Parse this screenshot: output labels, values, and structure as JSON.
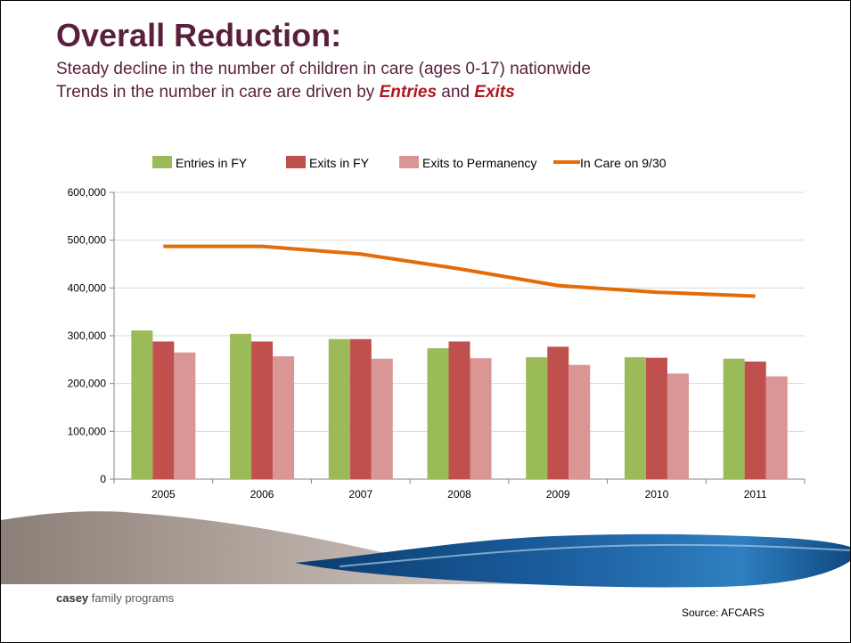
{
  "slide": {
    "title": "Overall Reduction:",
    "subtitle_line1": "Steady decline in the number of children in care (ages 0-17) nationwide",
    "subtitle_line2_prefix": "Trends in the number in care are driven by ",
    "subtitle_line2_entries": "Entries",
    "subtitle_line2_and": " and ",
    "subtitle_line2_exits": "Exits",
    "brand_bold": "casey",
    "brand_rest": " family programs",
    "source": "Source: AFCARS"
  },
  "colors": {
    "title": "#5a1f3d",
    "accent_red": "#b0171f",
    "entries": "#9bbb59",
    "exits": "#c0504d",
    "permanency": "#d99694",
    "in_care": "#e36c09"
  },
  "chart_data": {
    "type": "bar",
    "categories": [
      "2005",
      "2006",
      "2007",
      "2008",
      "2009",
      "2010",
      "2011"
    ],
    "series": [
      {
        "name": "Entries in FY",
        "kind": "bar",
        "color": "#9bbb59",
        "values": [
          311000,
          304000,
          293000,
          274000,
          255000,
          255000,
          252000
        ]
      },
      {
        "name": "Exits in FY",
        "kind": "bar",
        "color": "#c0504d",
        "values": [
          288000,
          288000,
          293000,
          288000,
          277000,
          254000,
          246000
        ]
      },
      {
        "name": "Exits to Permanency",
        "kind": "bar",
        "color": "#d99694",
        "values": [
          265000,
          257000,
          252000,
          253000,
          239000,
          221000,
          215000
        ]
      },
      {
        "name": "In Care on 9/30",
        "kind": "line",
        "color": "#e36c09",
        "values": [
          487000,
          487000,
          471000,
          440000,
          405000,
          391000,
          383000
        ]
      }
    ],
    "ylim": [
      0,
      600000
    ],
    "yticks": [
      0,
      100000,
      200000,
      300000,
      400000,
      500000,
      600000
    ],
    "ytick_labels": [
      "0",
      "100,000",
      "200,000",
      "300,000",
      "400,000",
      "500,000",
      "600,000"
    ],
    "grid": true,
    "legend_position": "top"
  }
}
